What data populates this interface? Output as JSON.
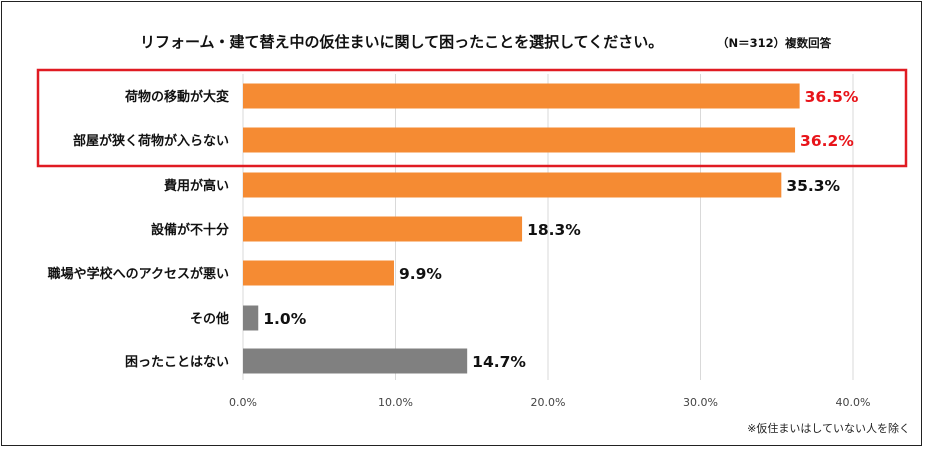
{
  "chart_data": {
    "type": "bar",
    "orientation": "horizontal",
    "title": "リフォーム・建て替え中の仮住まいに関して困ったことを選択してください。",
    "sample_note": "（N＝312）複数回答",
    "footnote": "※仮住まいはしていない人を除く",
    "categories": [
      "荷物の移動が大変",
      "部屋が狭く荷物が入らない",
      "費用が高い",
      "設備が不十分",
      "職場や学校へのアクセスが悪い",
      "その他",
      "困ったことはない"
    ],
    "values": [
      36.5,
      36.2,
      35.3,
      18.3,
      9.9,
      1.0,
      14.7
    ],
    "value_labels": [
      "36.5%",
      "36.2%",
      "35.3%",
      "18.3%",
      "9.9%",
      "1.0%",
      "14.7%"
    ],
    "bar_colors": [
      "#F58B33",
      "#F58B33",
      "#F58B33",
      "#F58B33",
      "#F58B33",
      "#808080",
      "#808080"
    ],
    "label_colors": [
      "#E8141A",
      "#E8141A",
      "#111111",
      "#111111",
      "#111111",
      "#111111",
      "#111111"
    ],
    "highlighted_indices": [
      0,
      1
    ],
    "highlight_color": "#E01B22",
    "xlim": [
      0,
      40
    ],
    "xticks": [
      0,
      10,
      20,
      30,
      40
    ],
    "xtick_labels": [
      "0.0%",
      "10.0%",
      "20.0%",
      "30.0%",
      "40.0%"
    ],
    "grid": true,
    "gridline_color": "#D9D9D9",
    "xlabel": "",
    "ylabel": ""
  }
}
